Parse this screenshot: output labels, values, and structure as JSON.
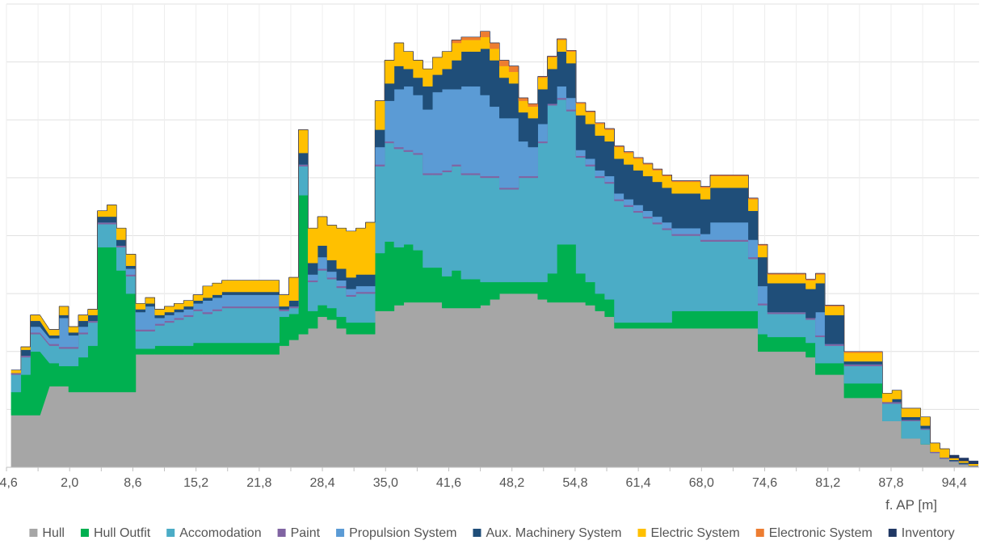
{
  "chart_data": {
    "type": "area",
    "stacked": true,
    "step": true,
    "title": "",
    "xlabel": "f.  AP [m]",
    "ylabel": "",
    "xlim": [
      -4.6,
      97.0
    ],
    "ylim": [
      0,
      8
    ],
    "grid": true,
    "legend_position": "bottom",
    "x_ticks": [
      "-4,6",
      "2,0",
      "8,6",
      "15,2",
      "21,8",
      "28,4",
      "35,0",
      "41,6",
      "48,2",
      "54,8",
      "61,4",
      "68,0",
      "74,6",
      "81,2",
      "87,8",
      "94,4"
    ],
    "x_tick_values": [
      -4.6,
      2.0,
      8.6,
      15.2,
      21.8,
      28.4,
      35.0,
      41.6,
      48.2,
      54.8,
      61.4,
      68.0,
      74.6,
      81.2,
      87.8,
      94.4
    ],
    "x": [
      -3.6,
      -2.6,
      -1.6,
      0.4,
      1.4,
      2.4,
      3.4,
      4.4,
      5.4,
      6.4,
      7.4,
      8.4,
      9.4,
      10.4,
      11.4,
      12.4,
      13.4,
      14.4,
      15.4,
      16.4,
      17.4,
      18.4,
      19.4,
      20.4,
      21.4,
      22.4,
      23.4,
      24.4,
      25.4,
      26.4,
      27.4,
      28.4,
      29.4,
      30.4,
      31.4,
      32.4,
      33.4,
      34.4,
      35.4,
      36.4,
      37.4,
      38.4,
      39.4,
      40.4,
      41.4,
      42.4,
      43.4,
      44.4,
      45.4,
      46.4,
      47.4,
      48.4,
      49.4,
      50.4,
      51.4,
      52.4,
      53.4,
      54.4,
      55.4,
      56.4,
      57.4,
      58.4,
      59.4,
      60.4,
      61.4,
      62.4,
      63.4,
      64.4,
      65.4,
      66.4,
      67.4,
      68.4,
      69.4,
      70.4,
      71.4,
      72.4,
      73.4,
      74.4,
      75.4,
      76.4,
      77.4,
      78.4,
      79.4,
      80.4,
      81.4,
      82.4,
      83.4,
      84.4,
      85.4,
      86.4,
      87.4,
      88.4,
      89.4,
      90.4,
      91.4,
      92.4,
      93.4,
      94.4,
      95.4,
      96.4
    ],
    "series": [
      {
        "name": "Hull",
        "color": "#a6a6a6",
        "values": [
          0.9,
          0.9,
          0.9,
          1.4,
          1.4,
          1.3,
          1.3,
          1.3,
          1.3,
          1.3,
          1.3,
          1.3,
          1.95,
          1.95,
          1.95,
          1.95,
          1.95,
          1.95,
          1.95,
          1.95,
          1.95,
          1.95,
          1.95,
          1.95,
          1.95,
          1.95,
          1.95,
          2.1,
          2.2,
          2.3,
          2.4,
          2.6,
          2.55,
          2.4,
          2.3,
          2.3,
          2.3,
          2.7,
          2.7,
          2.8,
          2.85,
          2.85,
          2.85,
          2.85,
          2.75,
          2.75,
          2.75,
          2.75,
          2.8,
          2.9,
          3.0,
          3.0,
          3.0,
          3.0,
          2.9,
          2.85,
          2.85,
          2.85,
          2.85,
          2.8,
          2.7,
          2.6,
          2.4,
          2.4,
          2.4,
          2.4,
          2.4,
          2.4,
          2.4,
          2.4,
          2.4,
          2.4,
          2.4,
          2.4,
          2.4,
          2.4,
          2.4,
          2.0,
          2.0,
          2.0,
          2.0,
          2.0,
          1.9,
          1.6,
          1.6,
          1.6,
          1.2,
          1.2,
          1.2,
          1.2,
          0.8,
          0.8,
          0.5,
          0.5,
          0.4,
          0.25,
          0.15,
          0.1,
          0.05,
          0.02
        ]
      },
      {
        "name": "Hull Outfit",
        "color": "#00b050",
        "values": [
          0.4,
          0.7,
          1.1,
          0.4,
          0.35,
          0.45,
          0.6,
          0.8,
          2.5,
          2.5,
          2.1,
          1.7,
          0.1,
          0.1,
          0.15,
          0.15,
          0.15,
          0.15,
          0.2,
          0.2,
          0.2,
          0.2,
          0.2,
          0.2,
          0.2,
          0.2,
          0.2,
          0.5,
          0.45,
          2.4,
          0.3,
          0.2,
          0.2,
          0.2,
          0.2,
          0.2,
          0.2,
          1.0,
          1.2,
          1.0,
          1.0,
          0.9,
          0.6,
          0.6,
          0.55,
          0.65,
          0.5,
          0.5,
          0.4,
          0.3,
          0.2,
          0.2,
          0.2,
          0.2,
          0.3,
          0.5,
          1.0,
          1.0,
          0.5,
          0.4,
          0.3,
          0.3,
          0.1,
          0.1,
          0.1,
          0.1,
          0.1,
          0.1,
          0.3,
          0.3,
          0.3,
          0.3,
          0.3,
          0.3,
          0.3,
          0.3,
          0.3,
          0.3,
          0.25,
          0.25,
          0.25,
          0.25,
          0.25,
          0.2,
          0.2,
          0.2,
          0.25,
          0.25,
          0.25,
          0.25,
          0.0,
          0.0,
          0.0,
          0.0,
          0.0,
          0.0,
          0.0,
          0.0,
          0.0,
          0.0
        ]
      },
      {
        "name": "Accomodation",
        "color": "#4bacc6",
        "values": [
          0.3,
          0.3,
          0.3,
          0.3,
          0.3,
          0.3,
          0.4,
          0.4,
          0.4,
          0.4,
          0.4,
          0.3,
          0.3,
          0.3,
          0.35,
          0.4,
          0.45,
          0.5,
          0.55,
          0.5,
          0.55,
          0.6,
          0.6,
          0.6,
          0.6,
          0.6,
          0.6,
          0.1,
          0.1,
          0.5,
          0.5,
          0.6,
          0.5,
          0.5,
          0.45,
          0.5,
          0.5,
          1.5,
          1.7,
          1.7,
          1.6,
          1.65,
          1.6,
          1.6,
          1.8,
          1.8,
          1.8,
          1.8,
          1.8,
          1.8,
          1.6,
          1.6,
          1.8,
          1.8,
          2.4,
          2.9,
          2.5,
          2.3,
          2.0,
          2.0,
          2.0,
          2.0,
          2.1,
          2.0,
          1.9,
          1.8,
          1.7,
          1.6,
          1.3,
          1.3,
          1.3,
          1.2,
          1.2,
          1.2,
          1.2,
          1.2,
          0.9,
          0.5,
          0.4,
          0.4,
          0.4,
          0.4,
          0.4,
          0.45,
          0.3,
          0.3,
          0.3,
          0.3,
          0.3,
          0.3,
          0.3,
          0.3,
          0.3,
          0.3,
          0.25,
          0.0,
          0.0,
          0.0,
          0.0,
          0.0
        ]
      },
      {
        "name": "Paint",
        "color": "#8064a2",
        "values": [
          0.03,
          0.03,
          0.03,
          0.03,
          0.03,
          0.03,
          0.03,
          0.03,
          0.03,
          0.03,
          0.03,
          0.03,
          0.03,
          0.03,
          0.03,
          0.03,
          0.03,
          0.03,
          0.03,
          0.03,
          0.03,
          0.03,
          0.03,
          0.03,
          0.03,
          0.03,
          0.03,
          0.03,
          0.03,
          0.03,
          0.03,
          0.03,
          0.03,
          0.03,
          0.03,
          0.03,
          0.03,
          0.03,
          0.03,
          0.03,
          0.03,
          0.03,
          0.03,
          0.03,
          0.03,
          0.03,
          0.03,
          0.03,
          0.03,
          0.03,
          0.03,
          0.03,
          0.03,
          0.03,
          0.03,
          0.03,
          0.03,
          0.03,
          0.03,
          0.03,
          0.03,
          0.03,
          0.03,
          0.03,
          0.03,
          0.03,
          0.03,
          0.03,
          0.03,
          0.03,
          0.03,
          0.03,
          0.03,
          0.03,
          0.03,
          0.03,
          0.03,
          0.03,
          0.03,
          0.03,
          0.03,
          0.03,
          0.03,
          0.03,
          0.03,
          0.03,
          0.03,
          0.03,
          0.03,
          0.03,
          0.03,
          0.03,
          0.02,
          0.02,
          0.02,
          0.02,
          0.02,
          0.01,
          0.01,
          0.01
        ]
      },
      {
        "name": "Propulsion System",
        "color": "#5b9bd5",
        "values": [
          0.0,
          0.0,
          0.1,
          0.1,
          0.5,
          0.2,
          0.1,
          0.0,
          0.0,
          0.0,
          0.0,
          0.1,
          0.3,
          0.4,
          0.1,
          0.1,
          0.1,
          0.1,
          0.1,
          0.2,
          0.2,
          0.2,
          0.2,
          0.2,
          0.2,
          0.2,
          0.2,
          0.0,
          0.0,
          0.0,
          0.1,
          0.2,
          0.1,
          0.1,
          0.1,
          0.1,
          0.1,
          0.3,
          0.7,
          1.0,
          1.1,
          1.0,
          1.1,
          1.4,
          1.4,
          1.3,
          1.5,
          1.5,
          1.4,
          1.2,
          1.2,
          1.2,
          0.6,
          0.5,
          0.3,
          0.0,
          0.2,
          0.2,
          0.1,
          0.1,
          0.1,
          0.1,
          0.1,
          0.1,
          0.1,
          0.1,
          0.1,
          0.1,
          0.1,
          0.1,
          0.1,
          0.1,
          0.3,
          0.3,
          0.3,
          0.3,
          0.3,
          0.3,
          0.0,
          0.0,
          0.0,
          0.0,
          0.0,
          0.4,
          0.0,
          0.0,
          0.0,
          0.0,
          0.0,
          0.0,
          0.0,
          0.0,
          0.0,
          0.0,
          0.0,
          0.0,
          0.0,
          0.0,
          0.0,
          0.0
        ]
      },
      {
        "name": "Aux. Machinery System",
        "color": "#1f4e79",
        "values": [
          0.0,
          0.1,
          0.1,
          0.05,
          0.05,
          0.05,
          0.1,
          0.1,
          0.1,
          0.1,
          0.1,
          0.05,
          0.05,
          0.05,
          0.05,
          0.05,
          0.05,
          0.05,
          0.05,
          0.05,
          0.05,
          0.05,
          0.05,
          0.05,
          0.05,
          0.05,
          0.05,
          0.05,
          0.1,
          0.2,
          0.2,
          0.2,
          0.2,
          0.2,
          0.2,
          0.2,
          0.2,
          0.3,
          0.3,
          0.4,
          0.3,
          0.3,
          0.4,
          0.3,
          0.35,
          0.5,
          0.6,
          0.6,
          0.8,
          0.8,
          0.7,
          0.6,
          0.5,
          0.5,
          0.6,
          0.6,
          0.6,
          0.6,
          0.6,
          0.6,
          0.6,
          0.6,
          0.6,
          0.6,
          0.6,
          0.6,
          0.6,
          0.6,
          0.6,
          0.6,
          0.6,
          0.6,
          0.6,
          0.6,
          0.6,
          0.6,
          0.5,
          0.5,
          0.5,
          0.5,
          0.5,
          0.5,
          0.5,
          0.5,
          0.5,
          0.5,
          0.05,
          0.05,
          0.05,
          0.05,
          0.0,
          0.05,
          0.05,
          0.05,
          0.05,
          0.0,
          0.0,
          0.02,
          0.02,
          0.0
        ]
      },
      {
        "name": "Electric System",
        "color": "#ffc000",
        "values": [
          0.05,
          0.05,
          0.1,
          0.1,
          0.15,
          0.1,
          0.1,
          0.1,
          0.1,
          0.2,
          0.2,
          0.2,
          0.1,
          0.1,
          0.1,
          0.1,
          0.1,
          0.1,
          0.1,
          0.2,
          0.2,
          0.2,
          0.2,
          0.2,
          0.2,
          0.2,
          0.2,
          0.2,
          0.4,
          0.4,
          0.6,
          0.5,
          0.6,
          0.7,
          0.8,
          0.8,
          0.9,
          0.5,
          0.4,
          0.4,
          0.3,
          0.3,
          0.3,
          0.3,
          0.3,
          0.3,
          0.2,
          0.2,
          0.2,
          0.2,
          0.2,
          0.2,
          0.2,
          0.2,
          0.2,
          0.2,
          0.2,
          0.2,
          0.2,
          0.2,
          0.2,
          0.2,
          0.2,
          0.2,
          0.2,
          0.2,
          0.2,
          0.2,
          0.2,
          0.2,
          0.2,
          0.2,
          0.2,
          0.2,
          0.2,
          0.2,
          0.2,
          0.2,
          0.15,
          0.15,
          0.15,
          0.15,
          0.15,
          0.15,
          0.15,
          0.15,
          0.15,
          0.15,
          0.15,
          0.15,
          0.15,
          0.15,
          0.15,
          0.15,
          0.15,
          0.15,
          0.15,
          0.03,
          0.03,
          0.03
        ]
      },
      {
        "name": "Electronic System",
        "color": "#ed7d31",
        "values": [
          0.0,
          0.0,
          0.0,
          0.0,
          0.0,
          0.0,
          0.0,
          0.0,
          0.0,
          0.0,
          0.0,
          0.0,
          0.0,
          0.0,
          0.0,
          0.0,
          0.0,
          0.0,
          0.0,
          0.0,
          0.0,
          0.0,
          0.0,
          0.0,
          0.0,
          0.0,
          0.0,
          0.0,
          0.0,
          0.0,
          0.0,
          0.0,
          0.0,
          0.0,
          0.0,
          0.0,
          0.0,
          0.0,
          0.0,
          0.0,
          0.0,
          0.0,
          0.0,
          0.0,
          0.0,
          0.05,
          0.05,
          0.05,
          0.1,
          0.1,
          0.1,
          0.1,
          0.05,
          0.05,
          0.02,
          0.02,
          0.02,
          0.02,
          0.02,
          0.02,
          0.02,
          0.02,
          0.02,
          0.02,
          0.02,
          0.02,
          0.02,
          0.02,
          0.02,
          0.02,
          0.02,
          0.02,
          0.02,
          0.02,
          0.02,
          0.02,
          0.02,
          0.02,
          0.02,
          0.02,
          0.02,
          0.02,
          0.02,
          0.02,
          0.02,
          0.02,
          0.02,
          0.02,
          0.02,
          0.02,
          0.0,
          0.0,
          0.0,
          0.0,
          0.0,
          0.0,
          0.0,
          0.0,
          0.0,
          0.0
        ]
      },
      {
        "name": "Inventory",
        "color": "#203864",
        "values": [
          0.0,
          0.0,
          0.0,
          0.0,
          0.0,
          0.0,
          0.0,
          0.0,
          0.0,
          0.0,
          0.0,
          0.0,
          0.0,
          0.0,
          0.0,
          0.0,
          0.0,
          0.0,
          0.0,
          0.0,
          0.0,
          0.0,
          0.0,
          0.0,
          0.0,
          0.0,
          0.0,
          0.0,
          0.0,
          0.0,
          0.0,
          0.0,
          0.0,
          0.0,
          0.0,
          0.0,
          0.0,
          0.0,
          0.0,
          0.0,
          0.0,
          0.0,
          0.0,
          0.0,
          0.0,
          0.0,
          0.0,
          0.0,
          0.0,
          0.0,
          0.0,
          0.0,
          0.0,
          0.0,
          0.0,
          0.0,
          0.0,
          0.0,
          0.0,
          0.0,
          0.0,
          0.0,
          0.0,
          0.0,
          0.0,
          0.0,
          0.0,
          0.0,
          0.0,
          0.0,
          0.0,
          0.0,
          0.0,
          0.0,
          0.0,
          0.0,
          0.0,
          0.0,
          0.0,
          0.0,
          0.0,
          0.0,
          0.0,
          0.0,
          0.0,
          0.0,
          0.0,
          0.0,
          0.0,
          0.0,
          0.0,
          0.0,
          0.0,
          0.0,
          0.0,
          0.0,
          0.0,
          0.05,
          0.05,
          0.05
        ]
      }
    ]
  }
}
